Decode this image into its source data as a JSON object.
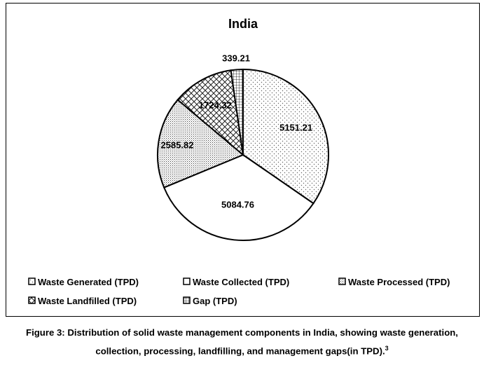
{
  "chart_data": {
    "type": "pie",
    "title": "India",
    "categories": [
      "Waste Generated (TPD)",
      "Waste Collected (TPD)",
      "Waste Processed (TPD)",
      "Waste Landfilled (TPD)",
      "Gap (TPD)"
    ],
    "values": [
      5151.21,
      5084.76,
      2585.82,
      1724.32,
      339.21
    ],
    "data_labels": [
      "5151.21",
      "5084.76",
      "2585.82",
      "1724.32",
      "339.21"
    ],
    "patterns": [
      "dots",
      "none",
      "dense-dots",
      "crosshatch",
      "grid"
    ],
    "legend_position": "bottom"
  },
  "caption": {
    "line1": "Figure 3: Distribution of solid waste management components in India, showing waste generation,",
    "line2": "collection, processing, landfilling, and management gaps(in TPD).",
    "superscript": "3"
  }
}
